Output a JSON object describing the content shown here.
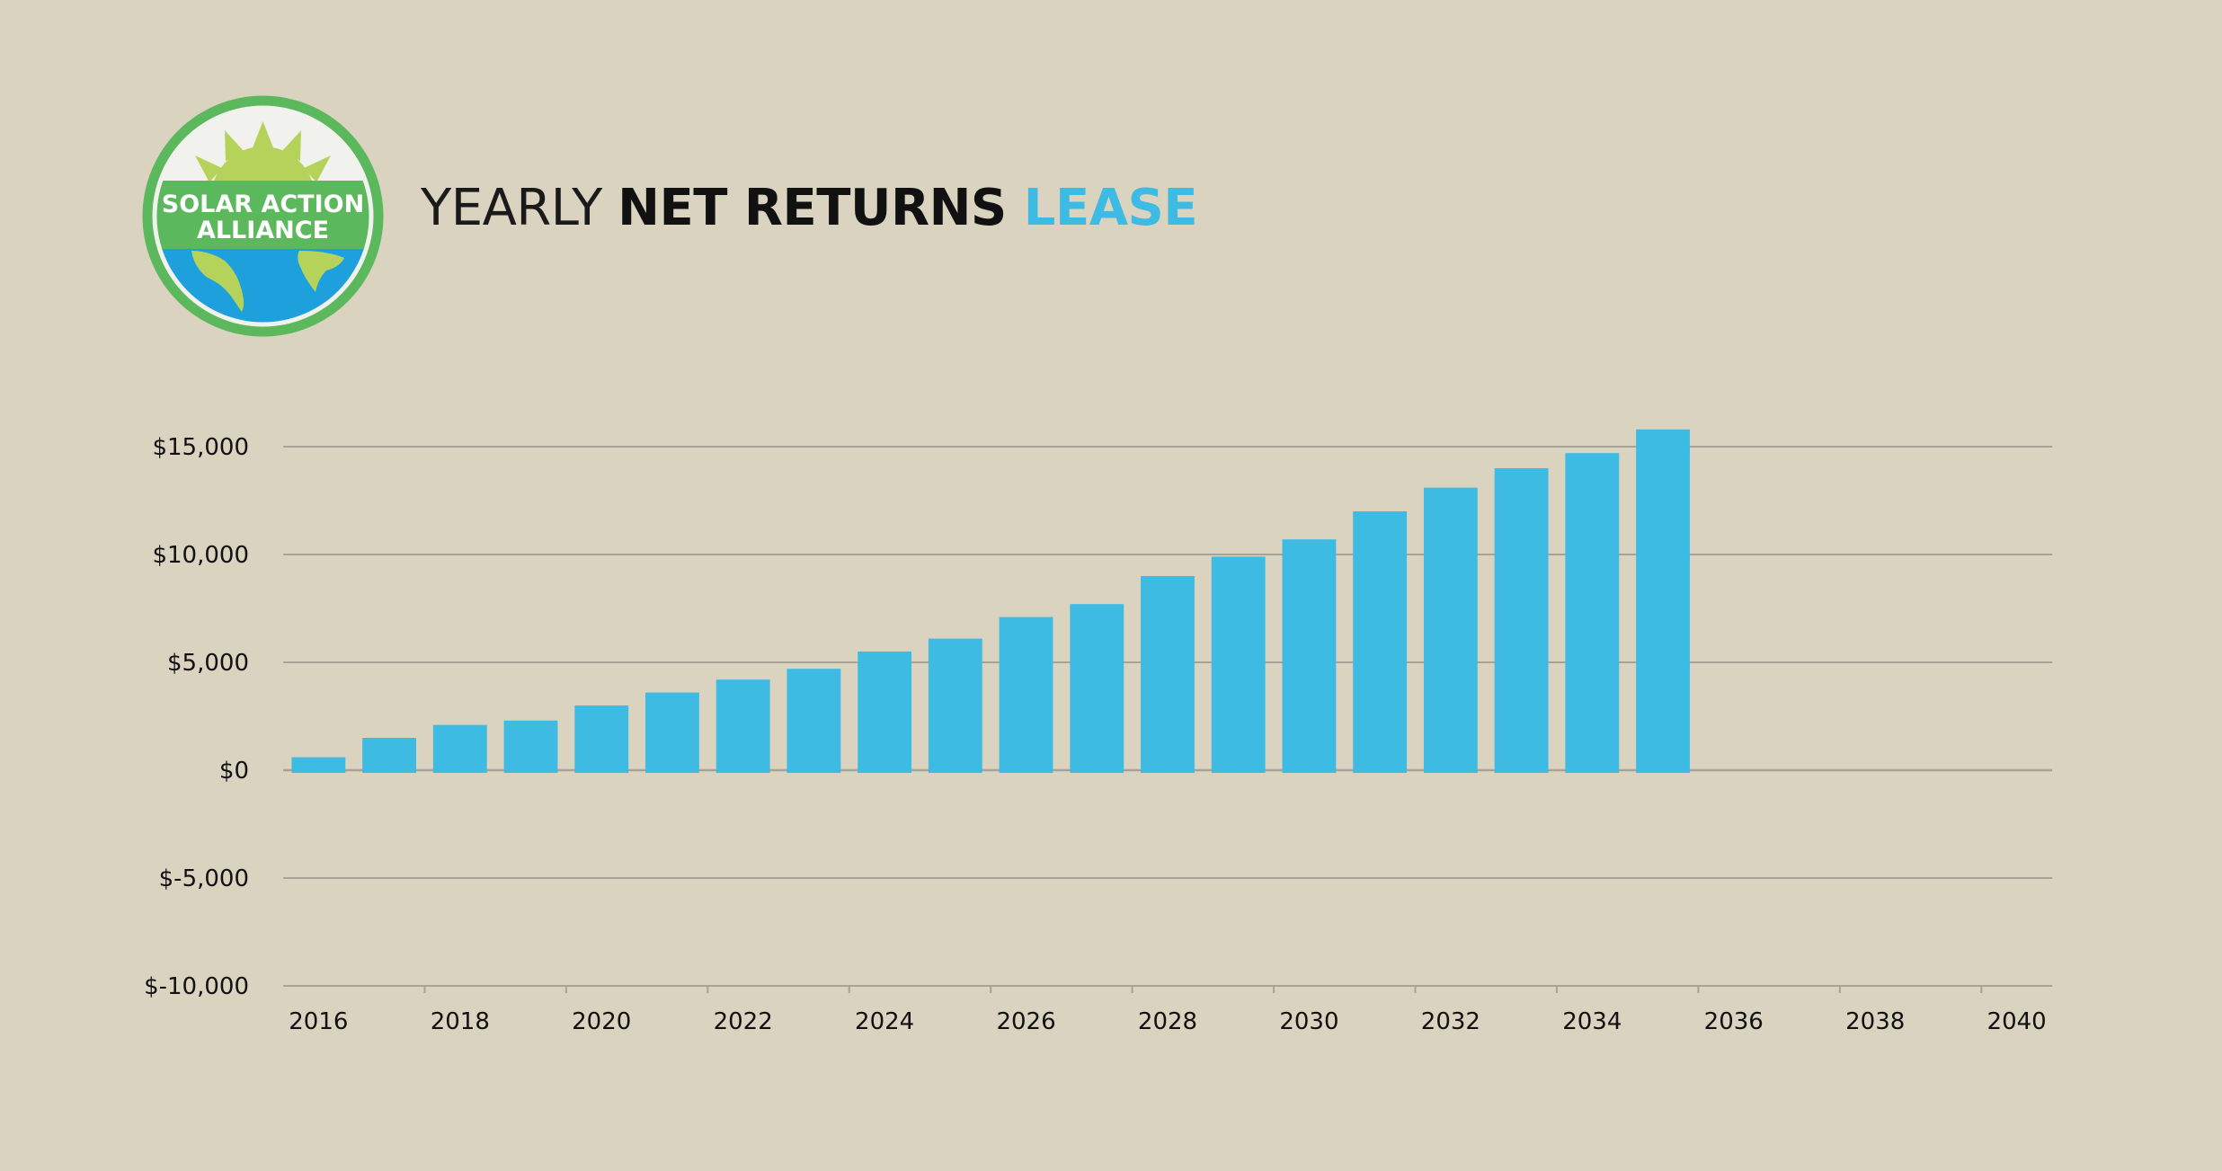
{
  "title": {
    "part1": "YEARLY ",
    "part2": "NET RETURNS",
    "part3": " LEASE"
  },
  "logo": {
    "line1": "SOLAR ACTION",
    "line2": "ALLIANCE"
  },
  "colors": {
    "background": "#d9d3c0",
    "bar": "#3dbbe3",
    "accent": "#3dbbe3",
    "grid": "#a8a396",
    "logo_green": "#5cb85c",
    "logo_lime": "#b5d35a",
    "logo_blue": "#1ea0dc"
  },
  "chart_data": {
    "type": "bar",
    "x": [
      2016,
      2017,
      2018,
      2019,
      2020,
      2021,
      2022,
      2023,
      2024,
      2025,
      2026,
      2027,
      2028,
      2029,
      2030,
      2031,
      2032,
      2033,
      2034,
      2035
    ],
    "values": [
      600,
      1500,
      2100,
      2300,
      3000,
      3600,
      4200,
      4700,
      5500,
      6100,
      7100,
      7700,
      9000,
      9900,
      10700,
      12000,
      13100,
      14000,
      14700,
      15800
    ],
    "ylim": [
      -10000,
      15000
    ],
    "yticks": [
      15000,
      10000,
      5000,
      0,
      -5000,
      -10000
    ],
    "ytick_labels": [
      "$15,000",
      "$10,000",
      "$5,000",
      "$0",
      "$-5,000",
      "$-10,000"
    ],
    "xlim": [
      2016,
      2040
    ],
    "xtick_labels": [
      "2016",
      "2018",
      "2020",
      "2022",
      "2024",
      "2026",
      "2028",
      "2030",
      "2032",
      "2034",
      "2036",
      "2038",
      "2040"
    ],
    "grid": "horizontal",
    "legend": "none"
  }
}
